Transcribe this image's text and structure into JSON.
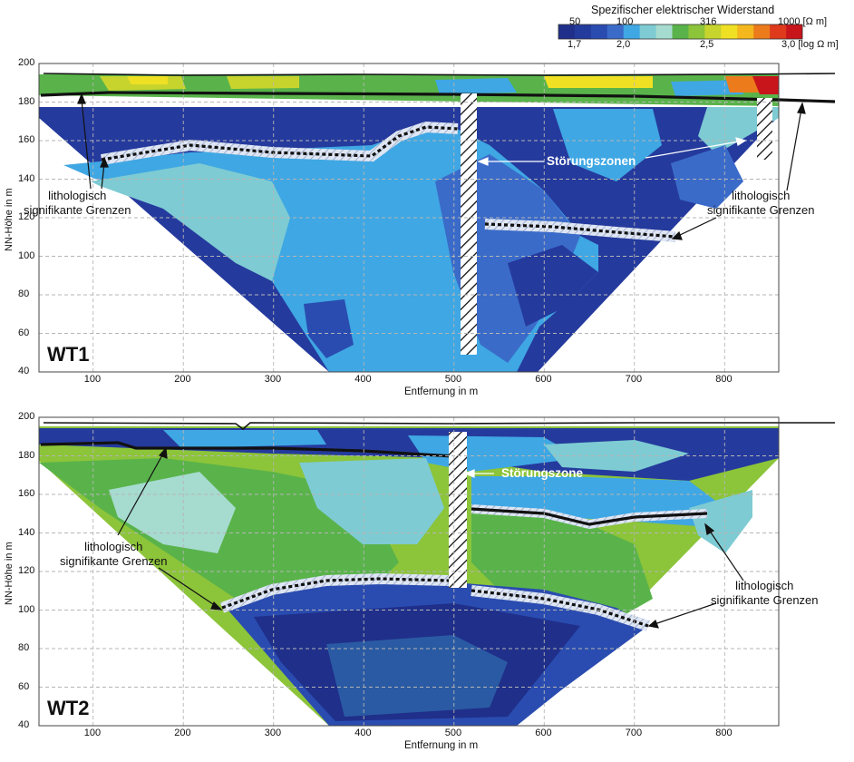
{
  "legend": {
    "title": "Spezifischer elektrischer Widerstand",
    "top_labels": [
      "50",
      "100",
      "316",
      "1000"
    ],
    "top_unit": "[Ω m]",
    "bottom_labels": [
      "1,7",
      "2,0",
      "2,5",
      "3,0"
    ],
    "bottom_unit": "[log Ω m]",
    "colors": [
      "#1f2f8a",
      "#233b9c",
      "#2a4cb0",
      "#3b6bc9",
      "#3fa7e3",
      "#7ecbd3",
      "#a6dbcf",
      "#59b34a",
      "#8cc43a",
      "#c8d42e",
      "#f0e024",
      "#f4b81e",
      "#ec7b1c",
      "#df3a1b",
      "#c8141b"
    ]
  },
  "chart_data": [
    {
      "type": "heatmap",
      "title": "WT1",
      "xlabel": "Entfernung in m",
      "ylabel": "NN-Höhe in m",
      "xlim": [
        40,
        860
      ],
      "ylim": [
        40,
        200
      ],
      "xticks": [
        100,
        200,
        300,
        400,
        500,
        600,
        700,
        800
      ],
      "yticks": [
        40,
        60,
        80,
        100,
        120,
        140,
        160,
        180,
        200
      ],
      "annotations": [
        "lithologisch signifikante Grenzen",
        "Störungszonen",
        "lithologisch signifikante Grenzen",
        "lithologisch signifikante Grenzen"
      ]
    },
    {
      "type": "heatmap",
      "title": "WT2",
      "xlabel": "Entfernung in m",
      "ylabel": "NN-Höhe in m",
      "xlim": [
        40,
        860
      ],
      "ylim": [
        40,
        200
      ],
      "xticks": [
        100,
        200,
        300,
        400,
        500,
        600,
        700,
        800
      ],
      "yticks": [
        40,
        60,
        80,
        100,
        120,
        140,
        160,
        180,
        200
      ],
      "annotations": [
        "Störungszone",
        "lithologisch signifikante Grenzen",
        "lithologisch signifikante Grenzen"
      ]
    }
  ],
  "texts": {
    "wt1_a1_l1": "lithologisch",
    "wt1_a1_l2": "signifikante Grenzen",
    "wt1_fault": "Störungszonen",
    "wt1_a2_l1": "lithologisch",
    "wt1_a2_l2": "signifikante Grenzen",
    "wt2_fault": "Störungszone",
    "wt2_a1_l1": "lithologisch",
    "wt2_a1_l2": "signifikante Grenzen",
    "wt2_a2_l1": "lithologisch",
    "wt2_a2_l2": "signifikante Grenzen"
  }
}
